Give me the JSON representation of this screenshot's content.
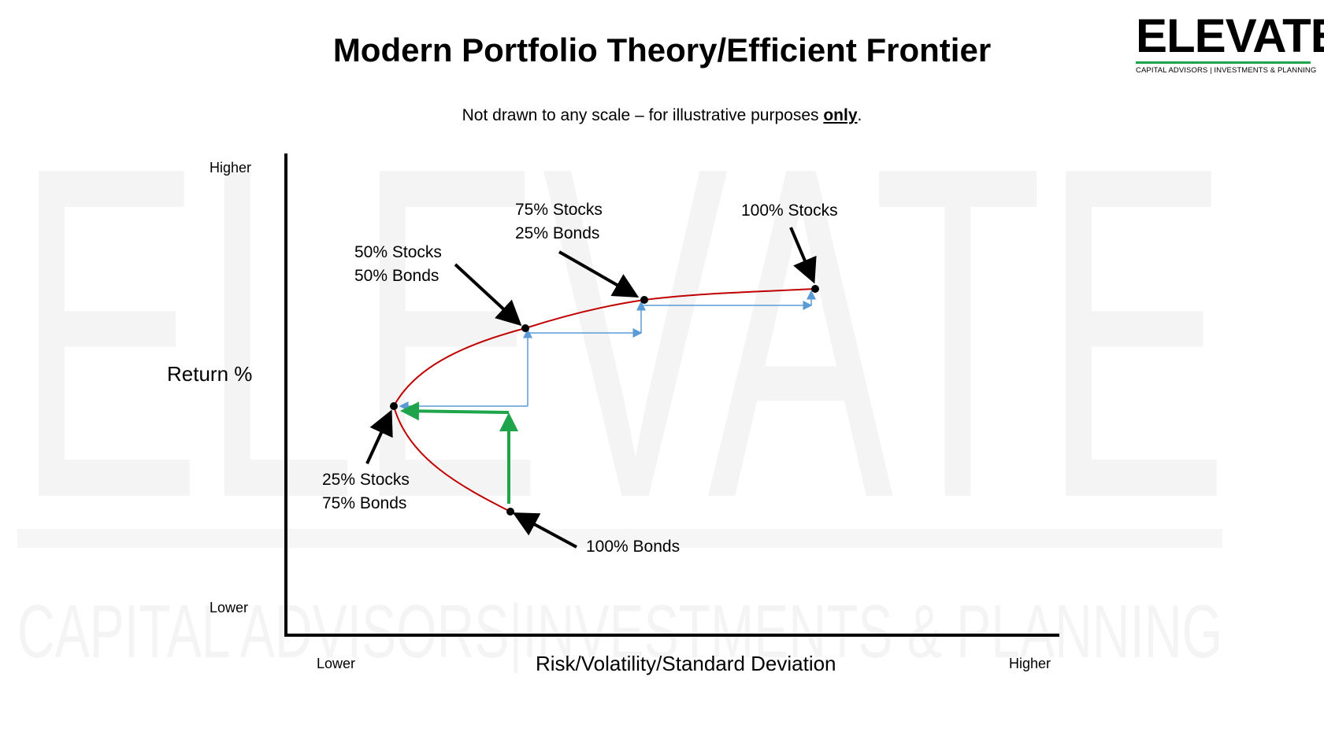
{
  "title": "Modern Portfolio Theory/Efficient Frontier",
  "subtitle": {
    "prefix": "Not drawn to any scale – for illustrative purposes ",
    "emphasis": "only",
    "suffix": "."
  },
  "logo": {
    "wordmark": "ELEVATE",
    "tagline": "CAPITAL ADVISORS | INVESTMENTS & PLANNING"
  },
  "watermark": {
    "wordmark": "ELEVATE",
    "tagline": "CAPITAL ADVISORS|INVESTMENTS & PLANNING"
  },
  "axes": {
    "y_label": "Return %",
    "x_label": "Risk/Volatility/Standard Deviation",
    "y_high": "Higher",
    "y_low": "Lower",
    "x_low": "Lower",
    "x_high": "Higher"
  },
  "portfolios": [
    {
      "id": "bonds100",
      "line1": "100% Bonds",
      "line2": ""
    },
    {
      "id": "s25",
      "line1": "25% Stocks",
      "line2": "75% Bonds"
    },
    {
      "id": "s50",
      "line1": "50% Stocks",
      "line2": "50% Bonds"
    },
    {
      "id": "s75",
      "line1": "75% Stocks",
      "line2": "25% Bonds"
    },
    {
      "id": "stocks100",
      "line1": "100% Stocks",
      "line2": ""
    }
  ],
  "colors": {
    "frontier": "#c00000",
    "step_arrows": "#5b9bd5",
    "highlight_arrows": "#1ea54b",
    "pointer_arrows": "#000000",
    "watermark": "#f4f4f4"
  }
}
